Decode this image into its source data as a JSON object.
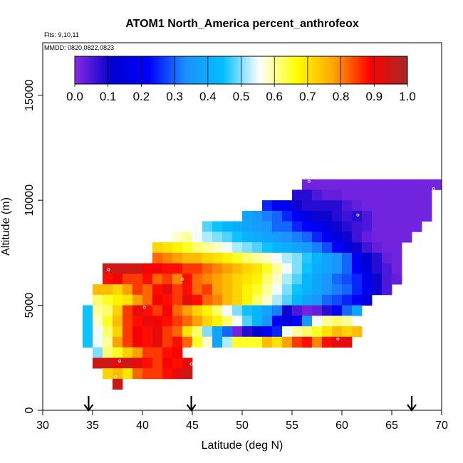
{
  "chart_data": {
    "type": "heatmap",
    "title": "ATOM1 North_America percent_anthrofeox",
    "subtitle_lines": [
      "Flts: 9,10,11",
      "MMDD: 0820,0822,0823"
    ],
    "xlabel": "Latitude (deg N)",
    "ylabel": "Altitude (m)",
    "xlim": [
      30,
      70
    ],
    "ylim": [
      0,
      17500
    ],
    "xticks": [
      "30",
      "35",
      "40",
      "45",
      "50",
      "55",
      "60",
      "65",
      "70"
    ],
    "yticks": [
      "0",
      "5000",
      "10000",
      "15000"
    ],
    "cell_width_deg": 1,
    "cell_height_m": 500,
    "color_scale": {
      "range": [
        0,
        1
      ],
      "ticks": [
        "0.0",
        "0.1",
        "0.2",
        "0.3",
        "0.4",
        "0.5",
        "0.6",
        "0.7",
        "0.8",
        "0.9",
        "1.0"
      ],
      "colors": [
        "#8a2be2",
        "#0000cd",
        "#0000ff",
        "#1e90ff",
        "#00bfff",
        "#ffffff",
        "#ffff00",
        "#ffa500",
        "#ff0000",
        "#a52a2a"
      ]
    },
    "rows": [
      {
        "alt": 10750,
        "lat0": 56,
        "values": [
          0.02,
          0.02,
          0.02,
          0.02,
          0.02,
          0.02,
          0.02,
          0.02,
          0.02,
          0.02,
          0.02,
          0.02,
          0.02,
          0.02
        ]
      },
      {
        "alt": 10250,
        "lat0": 55,
        "values": [
          0.08,
          0.08,
          0.05,
          0.03,
          0.03,
          0.02,
          0.02,
          0.02,
          0.02,
          0.02,
          0.02,
          0.02,
          0.02,
          0.02
        ]
      },
      {
        "alt": 9750,
        "lat0": 52,
        "values": [
          0.25,
          0.2,
          0.18,
          0.1,
          0.08,
          0.08,
          0.08,
          0.08,
          0.05,
          0.03,
          0.02,
          0.02,
          0.02,
          0.02,
          0.02,
          0.02,
          0.02
        ]
      },
      {
        "alt": 9250,
        "lat0": 50,
        "values": [
          0.38,
          0.35,
          0.32,
          0.3,
          0.25,
          0.2,
          0.15,
          0.1,
          0.1,
          0.08,
          0.06,
          0.08,
          0.05,
          0.02,
          0.02,
          0.02,
          0.02,
          0.02,
          0.02
        ]
      },
      {
        "alt": 8750,
        "lat0": 46,
        "values": [
          0.48,
          0.45,
          0.42,
          0.4,
          0.38,
          0.36,
          0.35,
          0.3,
          0.3,
          0.25,
          0.22,
          0.18,
          0.15,
          0.1,
          0.08,
          0.06,
          0.05,
          0.02,
          0.02,
          0.02,
          0.02,
          0.02
        ]
      },
      {
        "alt": 8250,
        "lat0": 43,
        "values": [
          0.58,
          0.6,
          0.55,
          0.52,
          0.5,
          0.48,
          0.45,
          0.42,
          0.4,
          0.38,
          0.36,
          0.34,
          0.32,
          0.3,
          0.25,
          0.2,
          0.15,
          0.1,
          0.06,
          0.03,
          0.02,
          0.02,
          0.02,
          0.02
        ]
      },
      {
        "alt": 7750,
        "lat0": 41,
        "values": [
          0.72,
          0.7,
          0.68,
          0.65,
          0.62,
          0.6,
          0.58,
          0.55,
          0.52,
          0.5,
          0.48,
          0.45,
          0.42,
          0.4,
          0.38,
          0.36,
          0.32,
          0.28,
          0.22,
          0.15,
          0.1,
          0.06,
          0.03,
          0.02,
          0.02
        ]
      },
      {
        "alt": 7250,
        "lat0": 41,
        "values": [
          0.82,
          0.8,
          0.78,
          0.75,
          0.75,
          0.72,
          0.7,
          0.68,
          0.65,
          0.62,
          0.6,
          0.58,
          0.55,
          0.52,
          0.5,
          0.46,
          0.42,
          0.38,
          0.35,
          0.3,
          0.2,
          0.12,
          0.08,
          0.03,
          0.02
        ]
      },
      {
        "alt": 6750,
        "lat0": 36,
        "values": [
          0.95,
          0.95,
          0.95,
          0.95,
          0.9,
          0.9,
          0.88,
          0.88,
          0.85,
          0.85,
          0.82,
          0.8,
          0.78,
          0.75,
          0.72,
          0.7,
          0.65,
          0.6,
          0.55,
          0.5,
          0.45,
          0.4,
          0.38,
          0.35,
          0.3,
          0.22,
          0.15,
          0.08,
          0.05,
          0.02
        ]
      },
      {
        "alt": 6250,
        "lat0": 36,
        "values": [
          0.88,
          0.9,
          0.85,
          0.85,
          0.88,
          0.82,
          0.85,
          0.8,
          0.88,
          0.82,
          0.8,
          0.78,
          0.75,
          0.72,
          0.7,
          0.68,
          0.62,
          0.58,
          0.52,
          0.48,
          0.42,
          0.38,
          0.35,
          0.3,
          0.28,
          0.25,
          0.18,
          0.1,
          0.05,
          0.03
        ]
      },
      {
        "alt": 5750,
        "lat0": 35,
        "values": [
          0.75,
          0.75,
          0.72,
          0.78,
          0.85,
          0.82,
          0.88,
          0.92,
          0.85,
          0.88,
          0.82,
          0.85,
          0.78,
          0.75,
          0.72,
          0.68,
          0.65,
          0.6,
          0.55,
          0.5,
          0.45,
          0.42,
          0.38,
          0.35,
          0.32,
          0.3,
          0.25,
          0.2,
          0.1,
          0.05
        ]
      },
      {
        "alt": 5250,
        "lat0": 35,
        "values": [
          0.62,
          0.65,
          0.68,
          0.7,
          0.78,
          0.82,
          0.9,
          0.88,
          0.85,
          0.92,
          0.88,
          0.82,
          0.8,
          0.75,
          0.72,
          0.68,
          0.62,
          0.58,
          0.52,
          0.48,
          0.42,
          0.38,
          0.35,
          0.3,
          0.28,
          0.25,
          0.2,
          0.15
        ]
      },
      {
        "alt": 4750,
        "lat0": 34,
        "values": [
          0.45,
          0.6,
          0.62,
          0.72,
          0.85,
          0.92,
          0.88,
          0.85,
          0.9,
          0.82,
          0.78,
          0.72,
          0.68,
          0.62,
          0.55,
          0.5,
          0.45,
          0.42,
          0.38,
          0.32,
          0.1,
          0.05,
          0.02,
          0.03,
          0.08,
          0.2,
          0.3,
          0.38
        ]
      },
      {
        "alt": 4250,
        "lat0": 34,
        "values": [
          0.45,
          0.58,
          0.65,
          0.75,
          0.85,
          0.88,
          0.92,
          0.9,
          0.88,
          0.85,
          0.82,
          0.78,
          0.72,
          0.68,
          0.62,
          0.55,
          0.48,
          0.42,
          0.35,
          0.22,
          0.15,
          0.2,
          0.35,
          0.55,
          0.6,
          0.62,
          0.6
        ]
      },
      {
        "alt": 3750,
        "lat0": 34,
        "values": [
          0.45,
          0.55,
          0.62,
          0.72,
          0.85,
          0.9,
          0.88,
          0.92,
          0.85,
          0.82,
          0.7,
          0.62,
          0.5,
          0.38,
          0.3,
          0.02,
          0.08,
          0.12,
          0.2,
          0.25,
          0.55,
          0.6,
          0.62,
          0.65,
          0.7,
          0.75,
          0.72,
          0.75
        ]
      },
      {
        "alt": 3250,
        "lat0": 34,
        "values": [
          0.45,
          0.55,
          0.6,
          0.78,
          0.85,
          0.9,
          0.88,
          0.92,
          0.85,
          0.88,
          0.82,
          0.65,
          0.58,
          0.38,
          0.52,
          0.65,
          0.65,
          0.65,
          0.75,
          0.7,
          0.78,
          0.85,
          0.88,
          0.8,
          0.88,
          0.92,
          0.92
        ]
      },
      {
        "alt": 2750,
        "lat0": 35,
        "values": [
          0.5,
          0.62,
          0.65,
          0.72,
          0.78,
          0.85,
          0.85,
          0.88,
          0.9
        ]
      },
      {
        "alt": 2250,
        "lat0": 35,
        "values": [
          0.95,
          0.95,
          0.92,
          0.95,
          0.92,
          0.88,
          0.85,
          0.9,
          0.88,
          0.92
        ]
      },
      {
        "alt": 1750,
        "lat0": 36,
        "values": [
          0.72,
          0.75,
          0.7,
          0.82,
          0.85,
          0.85,
          0.88,
          0.92,
          0.95
        ]
      },
      {
        "alt": 1250,
        "lat0": 37,
        "values": [
          0.95
        ]
      }
    ],
    "sample_points": [
      {
        "lat": 56.7,
        "alt": 10900
      },
      {
        "lat": 61.6,
        "alt": 9300
      },
      {
        "lat": 69.2,
        "alt": 10550
      },
      {
        "lat": 36.6,
        "alt": 6700
      },
      {
        "lat": 44.0,
        "alt": 6250
      },
      {
        "lat": 40.2,
        "alt": 4900
      },
      {
        "lat": 65.3,
        "alt": 5600
      },
      {
        "lat": 59.6,
        "alt": 3400
      },
      {
        "lat": 45.1,
        "alt": 3600
      },
      {
        "lat": 45.0,
        "alt": 3000
      },
      {
        "lat": 36.6,
        "alt": 2750
      },
      {
        "lat": 37.7,
        "alt": 2350
      },
      {
        "lat": 44.9,
        "alt": 2200
      },
      {
        "lat": 37.3,
        "alt": 1600
      }
    ],
    "flight_markers": [
      34.6,
      44.9,
      67.0
    ]
  }
}
